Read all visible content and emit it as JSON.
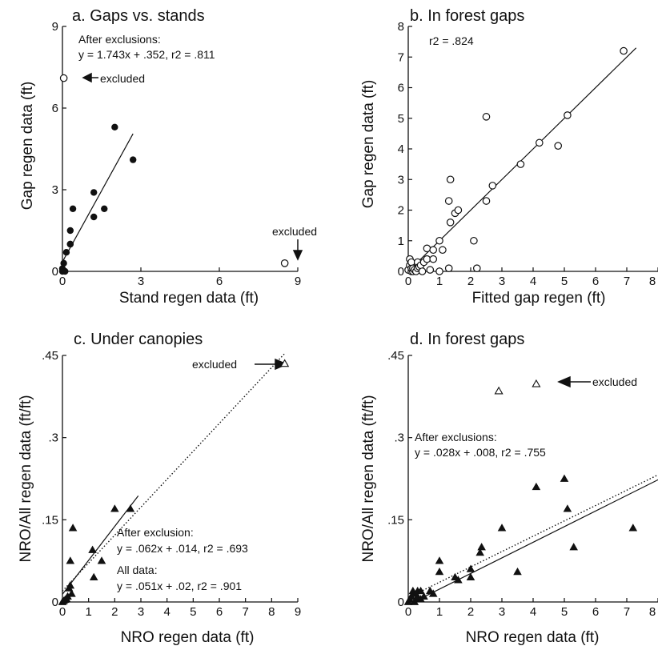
{
  "chart_data": [
    {
      "panel": "a",
      "type": "scatter",
      "title": "a. Gaps vs. stands",
      "xlabel": "Stand regen data (ft)",
      "ylabel": "Gap regen data (ft)",
      "xlim": [
        0,
        9
      ],
      "ylim": [
        0,
        9
      ],
      "xticks": [
        "0",
        "3",
        "6",
        "9"
      ],
      "yticks": [
        "0",
        "3",
        "6",
        "9"
      ],
      "series": [
        {
          "marker": "filled-circle",
          "x": [
            0.0,
            0.0,
            0.05,
            0.1,
            0.15,
            0.3,
            0.3,
            0.3,
            0.4,
            1.2,
            1.2,
            1.6,
            2.0,
            2.7
          ],
          "y": [
            0.0,
            0.1,
            0.3,
            0.0,
            0.7,
            1.0,
            1.5,
            1.0,
            2.3,
            2.9,
            2.0,
            2.3,
            5.3,
            4.1
          ]
        },
        {
          "marker": "open-circle",
          "x": [
            0.05,
            8.5
          ],
          "y": [
            7.1,
            0.3
          ]
        }
      ],
      "fit_lines": [
        {
          "style": "solid",
          "slope": 1.743,
          "intercept": 0.352,
          "x_range": [
            0,
            2.7
          ]
        }
      ],
      "annotations": {
        "fit_heading": "After exclusions:",
        "fit_equation": "y = 1.743x + .352, r2 = .811",
        "excluded_left": "excluded",
        "excluded_right": "excluded"
      }
    },
    {
      "panel": "b",
      "type": "scatter",
      "title": "b. In forest gaps",
      "xlabel": "Fitted gap regen (ft)",
      "ylabel": "Gap regen data (ft)",
      "xlim": [
        0,
        8
      ],
      "ylim": [
        0,
        8
      ],
      "xticks": [
        "0",
        "1",
        "2",
        "3",
        "4",
        "5",
        "6",
        "7",
        "8"
      ],
      "yticks": [
        "0",
        "1",
        "2",
        "3",
        "4",
        "5",
        "6",
        "7",
        "8"
      ],
      "series": [
        {
          "marker": "open-circle",
          "x": [
            0.0,
            0.05,
            0.05,
            0.1,
            0.1,
            0.1,
            0.15,
            0.15,
            0.2,
            0.25,
            0.3,
            0.3,
            0.35,
            0.4,
            0.45,
            0.5,
            0.6,
            0.6,
            0.7,
            0.8,
            0.8,
            1.0,
            1.0,
            1.1,
            1.3,
            1.3,
            1.35,
            1.35,
            1.5,
            1.6,
            2.1,
            2.2,
            2.5,
            2.5,
            2.7,
            3.6,
            4.2,
            4.8,
            5.1,
            6.9
          ],
          "y": [
            0.05,
            0.2,
            0.4,
            0.0,
            0.1,
            0.3,
            0.0,
            0.1,
            0.05,
            0.0,
            0.1,
            0.3,
            0.15,
            0.2,
            0.0,
            0.3,
            0.4,
            0.75,
            0.05,
            0.4,
            0.7,
            1.0,
            0.0,
            0.7,
            0.1,
            2.3,
            1.6,
            3.0,
            1.9,
            2.0,
            1.0,
            0.1,
            2.3,
            5.05,
            2.8,
            3.5,
            4.2,
            4.1,
            5.1,
            7.2
          ]
        }
      ],
      "fit_lines": [
        {
          "style": "solid",
          "slope": 1.0,
          "intercept": 0.0,
          "x_range": [
            0,
            7.3
          ]
        }
      ],
      "annotations": {
        "fit_equation": "r2 = .824"
      }
    },
    {
      "panel": "c",
      "type": "scatter",
      "title": "c. Under canopies",
      "xlabel": "NRO regen data (ft)",
      "ylabel": "NRO/All regen data (ft/ft)",
      "xlim": [
        0,
        9
      ],
      "ylim": [
        0,
        0.45
      ],
      "xticks": [
        "0",
        "1",
        "2",
        "3",
        "4",
        "5",
        "6",
        "7",
        "8",
        "9"
      ],
      "yticks": [
        "0",
        ".15",
        ".3",
        ".45"
      ],
      "series": [
        {
          "marker": "filled-triangle",
          "x": [
            0.0,
            0.05,
            0.1,
            0.15,
            0.2,
            0.25,
            0.3,
            0.3,
            0.35,
            0.4,
            1.15,
            1.2,
            1.5,
            2.0,
            2.6
          ],
          "y": [
            0.0,
            0.002,
            0.004,
            0.006,
            0.01,
            0.025,
            0.03,
            0.075,
            0.015,
            0.135,
            0.095,
            0.045,
            0.075,
            0.17,
            0.17
          ]
        },
        {
          "marker": "open-triangle",
          "x": [
            8.5
          ],
          "y": [
            0.435
          ]
        }
      ],
      "fit_lines": [
        {
          "style": "solid",
          "slope": 0.062,
          "intercept": 0.014,
          "x_range": [
            0,
            2.9
          ]
        },
        {
          "style": "dotted",
          "slope": 0.051,
          "intercept": 0.02,
          "x_range": [
            0,
            8.5
          ]
        }
      ],
      "annotations": {
        "excluded": "excluded",
        "exclusion_heading": "After exclusion:",
        "exclusion_equation": "y = .062x + .014, r2 = .693",
        "all_heading": "All data:",
        "all_equation": "y = .051x + .02, r2 = .901"
      }
    },
    {
      "panel": "d",
      "type": "scatter",
      "title": "d. In forest gaps",
      "xlabel": "NRO regen data (ft)",
      "ylabel": "NRO/All regen data (ft/ft)",
      "xlim": [
        0,
        8
      ],
      "ylim": [
        0,
        0.45
      ],
      "xticks": [
        "0",
        "1",
        "2",
        "3",
        "4",
        "5",
        "6",
        "7",
        "8"
      ],
      "yticks": [
        "0",
        ".15",
        ".3",
        ".45"
      ],
      "series": [
        {
          "marker": "filled-triangle",
          "x": [
            0.0,
            0.05,
            0.1,
            0.15,
            0.2,
            0.2,
            0.25,
            0.3,
            0.3,
            0.4,
            0.4,
            0.5,
            0.7,
            0.8,
            1.0,
            1.0,
            1.5,
            1.6,
            2.0,
            2.0,
            2.3,
            2.35,
            3.0,
            3.5,
            4.1,
            5.0,
            5.1,
            5.3,
            7.2
          ],
          "y": [
            0.0,
            0.005,
            0.01,
            0.02,
            0.0,
            0.015,
            0.005,
            0.02,
            0.01,
            0.02,
            0.005,
            0.01,
            0.02,
            0.015,
            0.075,
            0.055,
            0.045,
            0.04,
            0.06,
            0.045,
            0.09,
            0.1,
            0.135,
            0.055,
            0.21,
            0.225,
            0.17,
            0.1,
            0.135
          ]
        },
        {
          "marker": "open-triangle",
          "x": [
            2.9,
            4.1
          ],
          "y": [
            0.385,
            0.398
          ]
        }
      ],
      "fit_lines": [
        {
          "style": "dotted",
          "slope": 0.028,
          "intercept": 0.008,
          "x_range": [
            0,
            8.5
          ]
        },
        {
          "style": "solid",
          "slope": 0.028,
          "intercept": 0.008,
          "x_range": [
            0,
            8.5
          ],
          "display_slope": 0.0285,
          "display_intercept": -0.005
        }
      ],
      "annotations": {
        "excluded": "excluded",
        "fit_heading": "After exclusions:",
        "fit_equation": "y = .028x + .008, r2 = .755"
      }
    }
  ]
}
